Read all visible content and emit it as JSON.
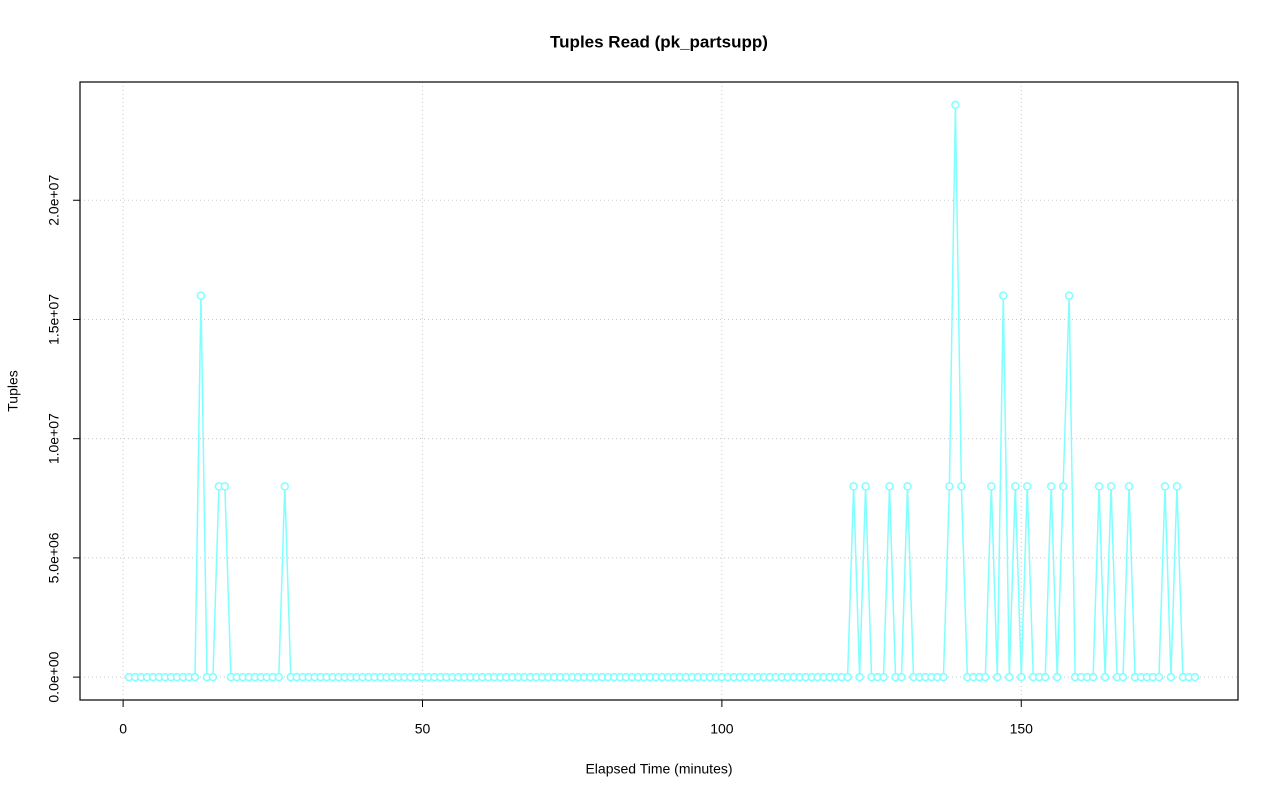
{
  "chart_data": {
    "type": "line",
    "title": "Tuples Read (pk_partsupp)",
    "xlabel": "Elapsed Time (minutes)",
    "ylabel": "Tuples",
    "x": [
      1,
      2,
      3,
      4,
      5,
      6,
      7,
      8,
      9,
      10,
      11,
      12,
      13,
      14,
      15,
      16,
      17,
      18,
      19,
      20,
      21,
      22,
      23,
      24,
      25,
      26,
      27,
      28,
      29,
      30,
      31,
      32,
      33,
      34,
      35,
      36,
      37,
      38,
      39,
      40,
      41,
      42,
      43,
      44,
      45,
      46,
      47,
      48,
      49,
      50,
      51,
      52,
      53,
      54,
      55,
      56,
      57,
      58,
      59,
      60,
      61,
      62,
      63,
      64,
      65,
      66,
      67,
      68,
      69,
      70,
      71,
      72,
      73,
      74,
      75,
      76,
      77,
      78,
      79,
      80,
      81,
      82,
      83,
      84,
      85,
      86,
      87,
      88,
      89,
      90,
      91,
      92,
      93,
      94,
      95,
      96,
      97,
      98,
      99,
      100,
      101,
      102,
      103,
      104,
      105,
      106,
      107,
      108,
      109,
      110,
      111,
      112,
      113,
      114,
      115,
      116,
      117,
      118,
      119,
      120,
      121,
      122,
      123,
      124,
      125,
      126,
      127,
      128,
      129,
      130,
      131,
      132,
      133,
      134,
      135,
      136,
      137,
      138,
      139,
      140,
      141,
      142,
      143,
      144,
      145,
      146,
      147,
      148,
      149,
      150,
      151,
      152,
      153,
      154,
      155,
      156,
      157,
      158,
      159,
      160,
      161,
      162,
      163,
      164,
      165,
      166,
      167,
      168,
      169,
      170,
      171,
      172,
      173,
      174,
      175,
      176,
      177,
      178,
      179
    ],
    "series": [
      {
        "name": "Tuples",
        "color": "#80ffff",
        "values": [
          0,
          0,
          0,
          0,
          0,
          0,
          0,
          0,
          0,
          0,
          0,
          0,
          16000000,
          0,
          0,
          8000000,
          8000000,
          0,
          0,
          0,
          0,
          0,
          0,
          0,
          0,
          0,
          8000000,
          0,
          0,
          0,
          0,
          0,
          0,
          0,
          0,
          0,
          0,
          0,
          0,
          0,
          0,
          0,
          0,
          0,
          0,
          0,
          0,
          0,
          0,
          0,
          0,
          0,
          0,
          0,
          0,
          0,
          0,
          0,
          0,
          0,
          0,
          0,
          0,
          0,
          0,
          0,
          0,
          0,
          0,
          0,
          0,
          0,
          0,
          0,
          0,
          0,
          0,
          0,
          0,
          0,
          0,
          0,
          0,
          0,
          0,
          0,
          0,
          0,
          0,
          0,
          0,
          0,
          0,
          0,
          0,
          0,
          0,
          0,
          0,
          0,
          0,
          0,
          0,
          0,
          0,
          0,
          0,
          0,
          0,
          0,
          0,
          0,
          0,
          0,
          0,
          0,
          0,
          0,
          0,
          0,
          0,
          8000000,
          0,
          8000000,
          0,
          0,
          0,
          8000000,
          0,
          0,
          8000000,
          0,
          0,
          0,
          0,
          0,
          0,
          8000000,
          24000000,
          8000000,
          0,
          0,
          0,
          0,
          8000000,
          0,
          16000000,
          0,
          8000000,
          0,
          8000000,
          0,
          0,
          0,
          8000000,
          0,
          8000000,
          16000000,
          0,
          0,
          0,
          0,
          8000000,
          0,
          8000000,
          0,
          0,
          8000000,
          0,
          0,
          0,
          0,
          0,
          8000000,
          0,
          8000000,
          0,
          0,
          0
        ]
      }
    ],
    "xlim": [
      -7.2,
      186.2
    ],
    "ylim": [
      -960000,
      24960000
    ],
    "xticks": [
      0,
      50,
      100,
      150
    ],
    "yticks": [
      {
        "value": 0,
        "label": "0.0e+00"
      },
      {
        "value": 5000000,
        "label": "5.0e+06"
      },
      {
        "value": 10000000,
        "label": "1.0e+07"
      },
      {
        "value": 15000000,
        "label": "1.5e+07"
      },
      {
        "value": 20000000,
        "label": "2.0e+07"
      }
    ],
    "grid": true
  }
}
